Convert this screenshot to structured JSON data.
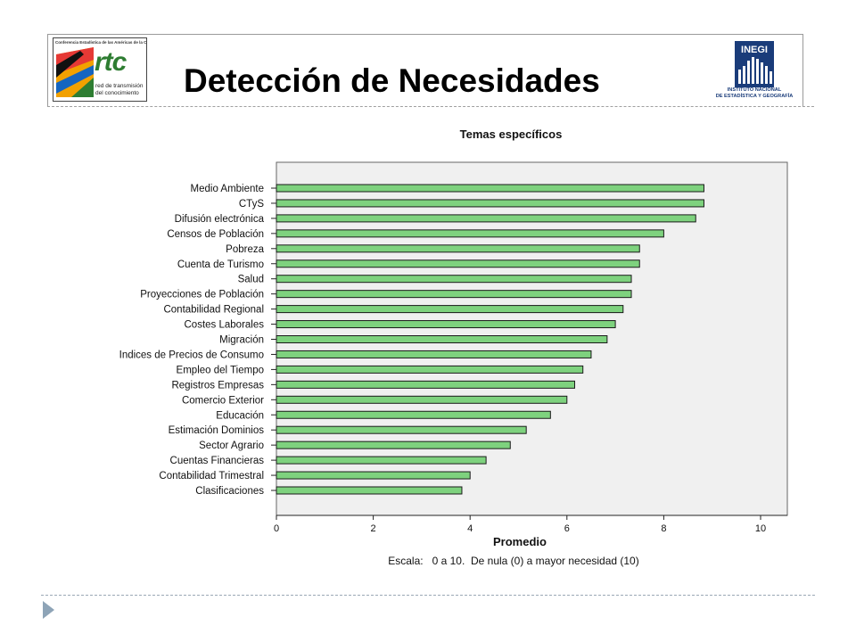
{
  "header": {
    "title": "Detección de Necesidades",
    "left_logo": {
      "caption": "Conferencia Estadística de las Américas de la CEPAL",
      "mark": "rtc",
      "subtitle_line1": "red de transmisión",
      "subtitle_line2": "del conocimiento"
    },
    "right_logo": {
      "mark": "INEGI",
      "name_line1": "INSTITUTO NACIONAL",
      "name_line2": "DE ESTADÍSTICA Y GEOGRAFÍA"
    }
  },
  "colors": {
    "bar_fill": "#7ed27e",
    "bar_stroke": "#1a1a1a",
    "plot_background": "#f0f0f0",
    "inegi_blue": "#1a3c7a"
  },
  "chart_data": {
    "type": "bar",
    "orientation": "horizontal",
    "title": "Temas específicos",
    "xlabel": "Promedio",
    "ylabel": "",
    "note": "Escala:   0 a 10.  De nula (0) a mayor necesidad (10)",
    "xlim": [
      0,
      10
    ],
    "xticks": [
      0,
      2,
      4,
      6,
      8,
      10
    ],
    "grid": false,
    "categories": [
      "Medio Ambiente",
      "CTyS",
      "Difusión electrónica",
      "Censos de Población",
      "Pobreza",
      "Cuenta de Turismo",
      "Salud",
      "Proyecciones de Población",
      "Contabilidad Regional",
      "Costes Laborales",
      "Migración",
      "Indices de Precios de Consumo",
      "Empleo del Tiempo",
      "Registros Empresas",
      "Comercio Exterior",
      "Educación",
      "Estimación Dominios",
      "Sector Agrario",
      "Cuentas Financieras",
      "Contabilidad Trimestral",
      "Clasificaciones"
    ],
    "values": [
      8.83,
      8.83,
      8.66,
      8.0,
      7.5,
      7.5,
      7.33,
      7.33,
      7.16,
      7.0,
      6.83,
      6.5,
      6.33,
      6.16,
      6.0,
      5.66,
      5.16,
      4.83,
      4.33,
      4.0,
      3.83
    ]
  }
}
